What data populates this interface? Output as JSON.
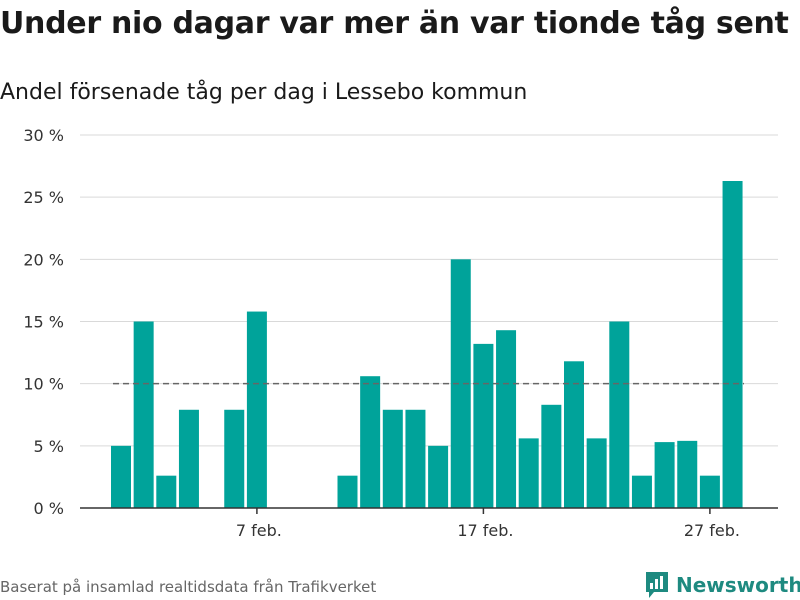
{
  "chart_data": {
    "type": "bar",
    "title": "Under nio dagar var mer än var tionde tåg sent",
    "subtitle": "Andel försenade tåg per dag i Lessebo kommun",
    "x": [
      "1 feb.",
      "2 feb.",
      "3 feb.",
      "4 feb.",
      "5 feb.",
      "6 feb.",
      "7 feb.",
      "8 feb.",
      "9 feb.",
      "10 feb.",
      "11 feb.",
      "12 feb.",
      "13 feb.",
      "14 feb.",
      "15 feb.",
      "16 feb.",
      "17 feb.",
      "18 feb.",
      "19 feb.",
      "20 feb.",
      "21 feb.",
      "22 feb.",
      "23 feb.",
      "24 feb.",
      "25 feb.",
      "26 feb.",
      "27 feb.",
      "28 feb."
    ],
    "values": [
      5.0,
      15.0,
      2.6,
      7.9,
      null,
      7.9,
      15.8,
      null,
      null,
      null,
      2.6,
      10.6,
      7.9,
      7.9,
      5.0,
      20.0,
      13.2,
      14.3,
      5.6,
      8.3,
      11.8,
      5.6,
      15.0,
      2.6,
      5.3,
      5.4,
      2.6,
      26.3
    ],
    "xticks": [
      {
        "index": 6,
        "label": "7 feb."
      },
      {
        "index": 16,
        "label": "17 feb."
      },
      {
        "index": 26,
        "label": "27 feb."
      }
    ],
    "yticks": [
      0,
      5,
      10,
      15,
      20,
      25,
      30
    ],
    "ytick_labels": [
      "0 %",
      "5 %",
      "10 %",
      "15 %",
      "20 %",
      "25 %",
      "30 %"
    ],
    "ylim": [
      0,
      30
    ],
    "reference_line": 10,
    "grid": true,
    "bar_color": "#00a39a",
    "reference_color": "#666666",
    "grid_color": "#d9d9d9"
  },
  "footer": {
    "source": "Baserat på insamlad realtidsdata från Trafikverket",
    "brand": "Newsworthy"
  },
  "icons": {
    "brand_logo": "chart-bubble-icon"
  }
}
